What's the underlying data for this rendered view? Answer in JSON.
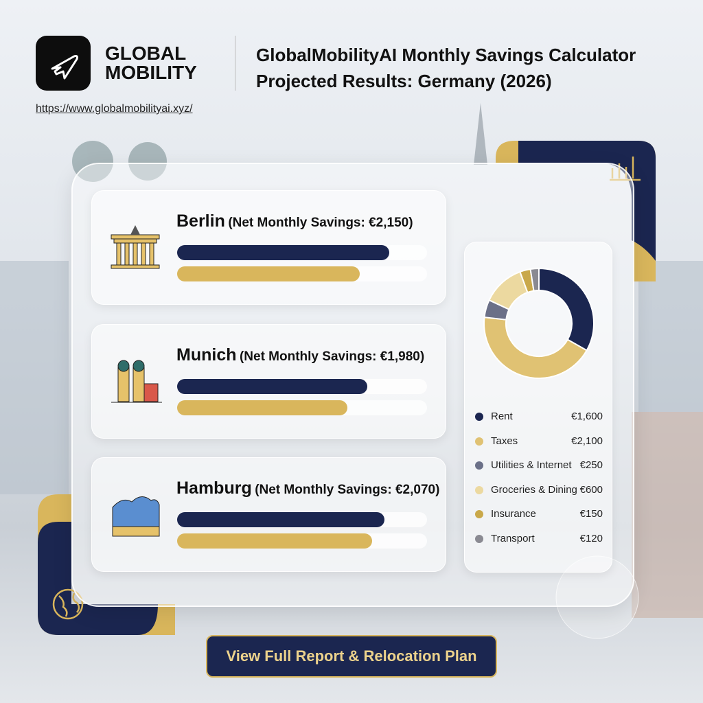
{
  "header": {
    "logo_line1": "GLOBAL",
    "logo_line2": "MOBILITY",
    "url": "https://www.globalmobilityai.xyz/",
    "title": "GlobalMobilityAI Monthly Savings Calculator",
    "subtitle": "Projected Results: Germany (2026)"
  },
  "bar_colors": [
    "#1b2650",
    "#d9b65c"
  ],
  "cities": [
    {
      "name": "Berlin",
      "savings": "(Net Monthly Savings: €2,150)",
      "bars": [
        0.85,
        0.73
      ]
    },
    {
      "name": "Munich",
      "savings": "(Net Monthly Savings: €1,980)",
      "bars": [
        0.76,
        0.68
      ]
    },
    {
      "name": "Hamburg",
      "savings": "(Net Monthly Savings: €2,070)",
      "bars": [
        0.83,
        0.78
      ]
    }
  ],
  "breakdown": [
    {
      "name": "Rent",
      "color": "#1b2650",
      "value": {
        "value": 1600,
        "label": "€1,600"
      }
    },
    {
      "name": "Taxes",
      "color": "#e0c273",
      "value": {
        "value": 2100,
        "label": "€2,100"
      }
    },
    {
      "name": "Utilities & Internet",
      "color": "#6b7088",
      "value": {
        "value": 250,
        "label": "€250"
      }
    },
    {
      "name": "Groceries & Dining",
      "color": "#ecd9a0",
      "value": {
        "value": 600,
        "label": "€600"
      }
    },
    {
      "name": "Insurance",
      "color": "#c9a84a",
      "value": {
        "value": 150,
        "label": "€150"
      }
    },
    {
      "name": "Transport",
      "color": "#8a8a92",
      "value": {
        "value": 120,
        "label": "€120"
      }
    }
  ],
  "button": "View Full Report & Relocation Plan"
}
